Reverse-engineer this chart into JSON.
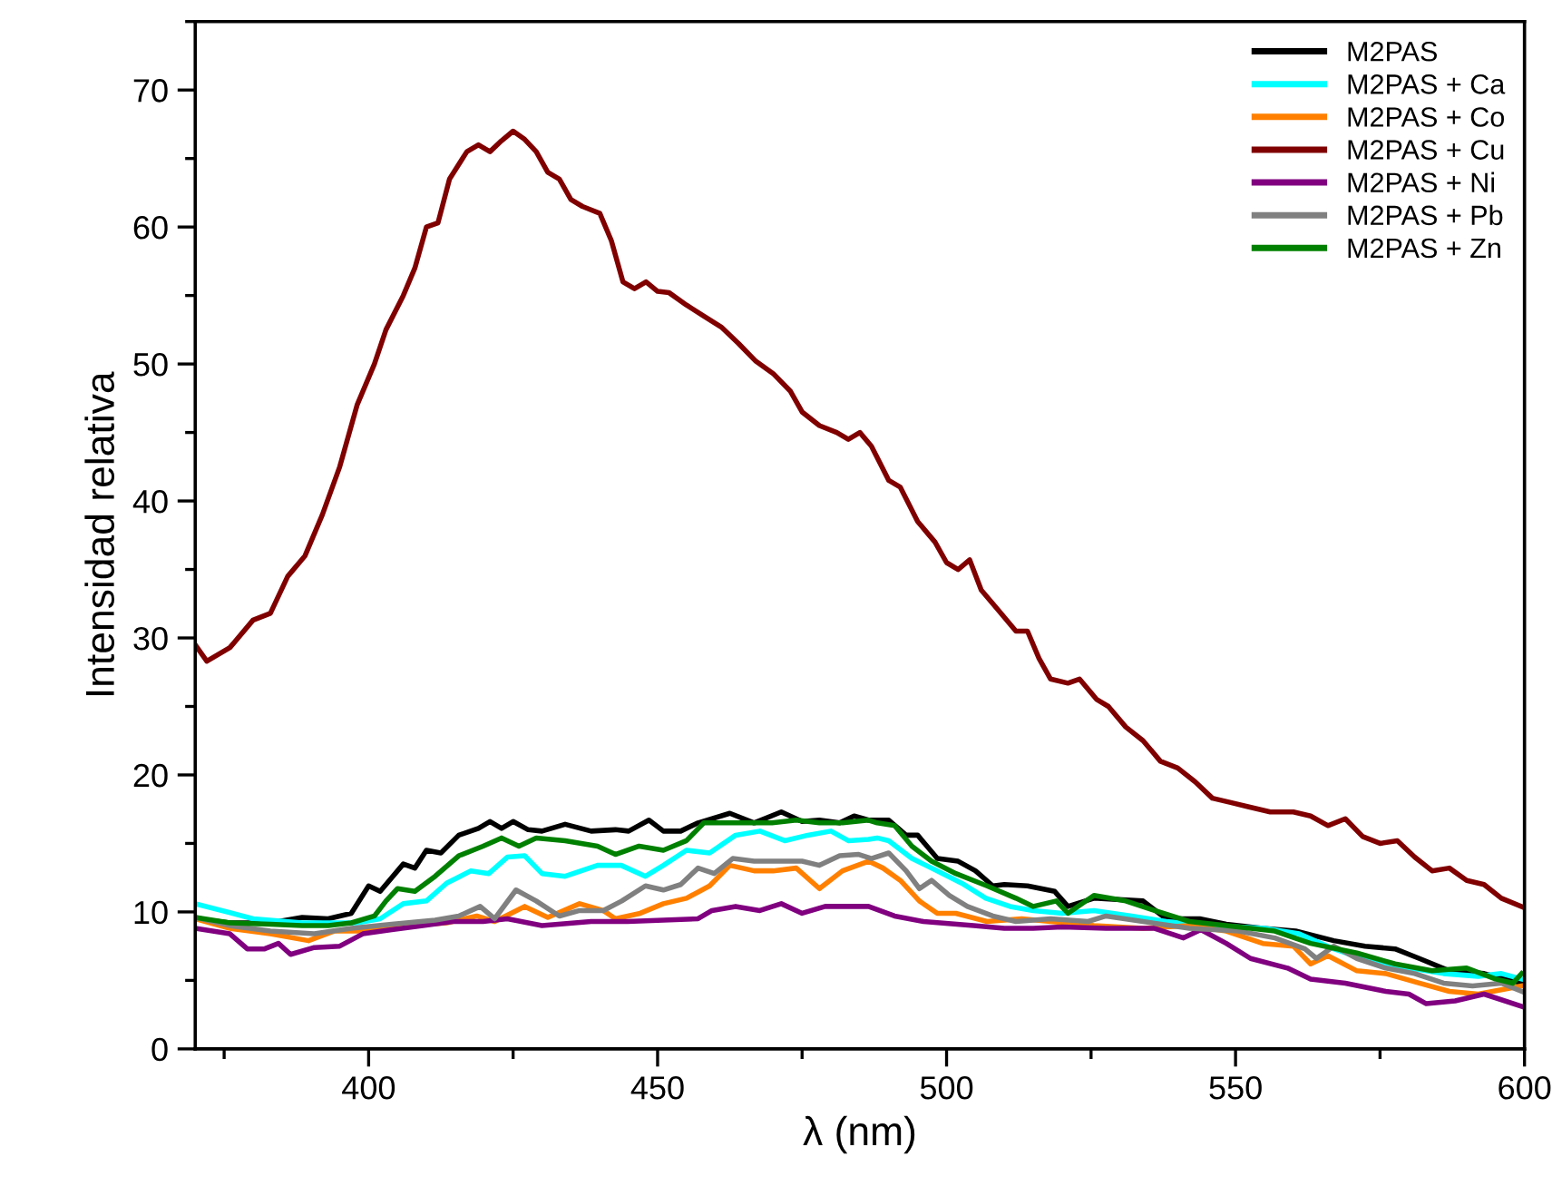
{
  "chart_data": {
    "type": "line",
    "xlabel": "λ (nm)",
    "ylabel": "Intensidad relativa",
    "xlim": [
      370,
      600
    ],
    "ylim": [
      0,
      75
    ],
    "xticks": [
      400,
      450,
      500,
      550,
      600
    ],
    "yticks": [
      0,
      10,
      20,
      30,
      40,
      50,
      60,
      70
    ],
    "legend": "top right",
    "grid": false,
    "marker": "none",
    "line_style": "solid",
    "series": [
      {
        "name": "M2PAS",
        "color": "#000000",
        "x": [
          370,
          376,
          383,
          388.5,
          393,
          397,
          400,
          402,
          406,
          408,
          410,
          412.5,
          415.6,
          419,
          421,
          423,
          425,
          427.6,
          430,
          434,
          438.5,
          442.7,
          445,
          448.5,
          451,
          454,
          457,
          462.5,
          466.7,
          471.4,
          475,
          478,
          481.5,
          484,
          486.5,
          488,
          490,
          493,
          495,
          498.4,
          502,
          505,
          508,
          510,
          514,
          518.7,
          521,
          525.5,
          534,
          538,
          543.8,
          548.4,
          554.7,
          560.4,
          567,
          572.4,
          577.6,
          581.8,
          587,
          593,
          599.5
        ],
        "values": [
          9.5,
          9.2,
          9.2,
          9.6,
          9.5,
          9.9,
          11.9,
          11.5,
          13.5,
          13.2,
          14.5,
          14.3,
          15.6,
          16.1,
          16.6,
          16.1,
          16.6,
          16,
          15.9,
          16.4,
          15.9,
          16,
          15.9,
          16.7,
          15.9,
          15.9,
          16.5,
          17.2,
          16.5,
          17.3,
          16.6,
          16.7,
          16.5,
          17,
          16.7,
          16.7,
          16.7,
          15.6,
          15.6,
          13.9,
          13.7,
          13,
          11.9,
          12,
          11.9,
          11.5,
          10.4,
          11,
          10.8,
          9.5,
          9.5,
          9.1,
          8.8,
          8.6,
          7.9,
          7.5,
          7.3,
          6.6,
          5.7,
          5.5,
          4.8
        ]
      },
      {
        "name": "M2PAS + Ca",
        "color": "#00ffff",
        "x": [
          370,
          380,
          388.5,
          398,
          402,
          406,
          410,
          413.5,
          417.7,
          420.8,
          424,
          427,
          430,
          434,
          439.6,
          443.7,
          447.9,
          451,
          455,
          459,
          463.5,
          467.7,
          472,
          476,
          480,
          483,
          486.5,
          488,
          490,
          494,
          498.4,
          502.6,
          506.8,
          511,
          515,
          520,
          525.5,
          532,
          538,
          546,
          555,
          561,
          567,
          573.5,
          580,
          586,
          592,
          596,
          599.5
        ],
        "values": [
          10.6,
          9.5,
          9.2,
          9.2,
          9.5,
          10.6,
          10.8,
          12.1,
          13,
          12.8,
          14,
          14.1,
          12.8,
          12.6,
          13.4,
          13.4,
          12.6,
          13.4,
          14.5,
          14.3,
          15.6,
          15.9,
          15.2,
          15.6,
          15.9,
          15.2,
          15.3,
          15.4,
          15.2,
          13.9,
          13,
          12.1,
          11,
          10.4,
          10.1,
          9.9,
          10.1,
          9.7,
          9.3,
          9,
          8.8,
          8.4,
          7.3,
          6.4,
          5.9,
          5.5,
          5.3,
          5.5,
          5.1
        ]
      },
      {
        "name": "M2PAS + Co",
        "color": "#ff8000",
        "x": [
          370,
          376,
          383,
          389.6,
          394,
          399,
          407,
          413.5,
          418.7,
          421.8,
          427,
          431,
          436.5,
          440.6,
          442.7,
          447,
          451,
          455,
          459,
          462.5,
          466.7,
          470,
          474,
          478,
          482,
          486.5,
          489,
          492,
          495.3,
          498.4,
          501.6,
          507,
          513,
          518,
          525.5,
          534,
          542,
          548.4,
          554.7,
          560,
          563,
          566,
          571,
          576,
          581.8,
          587,
          592,
          599.5
        ],
        "values": [
          9.5,
          8.8,
          8.4,
          7.9,
          8.6,
          8.6,
          9,
          9.2,
          9.7,
          9.3,
          10.4,
          9.6,
          10.6,
          10.1,
          9.5,
          9.9,
          10.6,
          11,
          11.9,
          13.4,
          13,
          13,
          13.2,
          11.7,
          13,
          13.7,
          13.2,
          12.3,
          10.8,
          9.9,
          9.9,
          9.3,
          9.5,
          9.3,
          9,
          8.8,
          9,
          8.6,
          7.7,
          7.5,
          6.2,
          6.8,
          5.7,
          5.5,
          4.8,
          4.2,
          4,
          4.6
        ]
      },
      {
        "name": "M2PAS + Cu",
        "color": "#800000",
        "x": [
          370,
          372,
          376,
          380,
          383,
          386,
          389,
          392,
          395,
          398,
          401,
          403,
          406,
          408,
          410,
          412,
          414,
          417,
          419,
          421,
          423,
          425,
          427,
          429,
          431,
          433,
          435,
          437,
          440,
          442,
          444,
          446,
          448,
          450,
          452,
          455,
          458,
          461,
          464,
          467,
          470,
          473,
          475,
          478,
          481,
          483,
          485,
          487,
          490,
          492,
          495,
          498,
          500,
          502,
          504,
          506,
          509,
          512,
          514,
          516,
          518,
          521,
          523,
          526,
          528,
          531,
          534,
          537,
          540,
          543,
          546,
          549,
          552,
          556,
          560,
          563,
          566,
          569,
          572,
          575,
          578,
          581,
          584,
          587,
          590,
          593,
          596,
          600
        ],
        "values": [
          29.5,
          28.3,
          29.3,
          31.3,
          31.8,
          34.5,
          36,
          39,
          42.5,
          47,
          50,
          52.5,
          55,
          57,
          60,
          60.3,
          63.5,
          65.5,
          66,
          65.5,
          66.3,
          67,
          66.4,
          65.5,
          64,
          63.5,
          62,
          61.5,
          61,
          59,
          56,
          55.5,
          56,
          55.3,
          55.2,
          54.3,
          53.5,
          52.7,
          51.5,
          50.2,
          49.3,
          48,
          46.5,
          45.5,
          45,
          44.5,
          45,
          44,
          41.5,
          41,
          38.5,
          37,
          35.5,
          35,
          35.7,
          33.5,
          32,
          30.5,
          30.5,
          28.5,
          27,
          26.7,
          27,
          25.5,
          25,
          23.5,
          22.5,
          21,
          20.5,
          19.5,
          18.3,
          18,
          17.7,
          17.3,
          17.3,
          17,
          16.3,
          16.8,
          15.5,
          15,
          15.2,
          14,
          13,
          13.2,
          12.3,
          12,
          11,
          10.3
        ]
      },
      {
        "name": "M2PAS + Ni",
        "color": "#800080",
        "x": [
          370,
          376,
          379,
          382,
          384.4,
          386.5,
          390.6,
          395,
          399,
          404,
          409.4,
          414.6,
          419.8,
          424,
          430,
          438.5,
          444.8,
          451,
          457,
          459.4,
          463.5,
          467.7,
          471.4,
          475,
          479,
          482,
          486.5,
          491,
          496,
          504.7,
          510,
          515,
          520,
          527.6,
          536,
          541,
          544,
          548.4,
          552.6,
          559,
          563,
          569,
          576,
          580,
          583,
          588,
          593,
          599.5
        ],
        "values": [
          8.8,
          8.4,
          7.3,
          7.3,
          7.7,
          6.9,
          7.4,
          7.5,
          8.4,
          8.7,
          9,
          9.3,
          9.3,
          9.5,
          9,
          9.3,
          9.3,
          9.4,
          9.5,
          10.1,
          10.4,
          10.1,
          10.6,
          9.9,
          10.4,
          10.4,
          10.4,
          9.7,
          9.3,
          9,
          8.8,
          8.8,
          8.9,
          8.8,
          8.8,
          8.1,
          8.7,
          7.7,
          6.6,
          5.9,
          5.1,
          4.8,
          4.2,
          4,
          3.3,
          3.5,
          4,
          3.1
        ]
      },
      {
        "name": "M2PAS + Pb",
        "color": "#808080",
        "x": [
          370,
          376,
          383,
          390.6,
          397,
          404,
          411.5,
          415.6,
          419.3,
          421.8,
          425.5,
          429,
          433,
          436.5,
          440.6,
          443.8,
          447.9,
          451,
          454,
          457,
          459.8,
          463,
          466.7,
          471,
          475,
          478,
          481.5,
          484.8,
          487,
          490,
          493,
          495.3,
          497.4,
          500.5,
          503.6,
          508,
          512,
          518,
          524.5,
          527.6,
          534,
          542,
          550.5,
          556.8,
          562,
          564,
          567,
          571,
          576,
          581,
          586,
          591,
          596,
          599.5
        ],
        "values": [
          9.6,
          9,
          8.6,
          8.4,
          8.8,
          9.1,
          9.4,
          9.7,
          10.4,
          9.5,
          11.6,
          10.8,
          9.7,
          10.1,
          10.1,
          10.8,
          11.9,
          11.6,
          12,
          13.2,
          12.8,
          13.9,
          13.7,
          13.7,
          13.7,
          13.4,
          14.1,
          14.2,
          13.9,
          14.3,
          13,
          11.7,
          12.3,
          11.2,
          10.4,
          9.7,
          9.3,
          9.5,
          9.3,
          9.7,
          9.3,
          8.8,
          8.6,
          8.1,
          7.3,
          6.6,
          7.5,
          6.6,
          5.9,
          5.5,
          4.8,
          4.6,
          4.8,
          4.2
        ]
      },
      {
        "name": "M2PAS + Zn",
        "color": "#008000",
        "x": [
          370,
          376,
          383,
          388.5,
          393,
          397,
          401,
          403,
          405,
          408,
          411.5,
          415.6,
          419.8,
          423,
          426,
          429,
          434,
          439.6,
          442.7,
          446.8,
          451,
          455,
          458,
          463.5,
          469.8,
          474,
          478,
          482,
          486.5,
          488,
          491,
          494,
          497.4,
          501.6,
          507,
          512,
          515,
          519,
          521,
          525.5,
          531,
          536,
          542,
          548.4,
          556.8,
          563,
          571,
          577.6,
          584,
          590,
          595,
          598,
          599.5
        ],
        "values": [
          9.6,
          9.2,
          9.1,
          9,
          9,
          9.2,
          9.7,
          10.8,
          11.7,
          11.5,
          12.6,
          14.1,
          14.8,
          15.4,
          14.8,
          15.4,
          15.2,
          14.8,
          14.2,
          14.8,
          14.5,
          15.2,
          16.5,
          16.5,
          16.5,
          16.7,
          16.5,
          16.5,
          16.7,
          16.5,
          16.3,
          14.8,
          13.7,
          12.8,
          11.9,
          11,
          10.4,
          10.8,
          9.9,
          11.2,
          10.8,
          10.1,
          9.3,
          9,
          8.6,
          7.7,
          7,
          6.2,
          5.7,
          5.9,
          5.1,
          4.8,
          5.5
        ]
      }
    ]
  }
}
